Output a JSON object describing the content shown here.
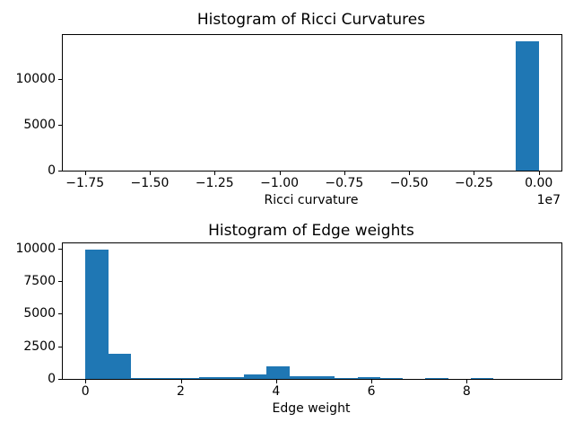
{
  "colors": {
    "bar": "#1f77b4",
    "spine": "#000000",
    "text": "#000000",
    "background": "#ffffff"
  },
  "chart_data": [
    {
      "id": "ricci-curvature-histogram",
      "type": "bar",
      "title": "Histogram of Ricci Curvatures",
      "xlabel": "Ricci curvature",
      "x_offset_label": "1e7",
      "x_unit_multiplier": 10000000,
      "grid": false,
      "legend": null,
      "bin_edges": [
        -1.748,
        -1.6606,
        -1.5732,
        -1.4858,
        -1.3984,
        -1.311,
        -1.2236,
        -1.1362,
        -1.0488,
        -0.9614,
        -0.874,
        -0.7866,
        -0.6992,
        -0.6118,
        -0.5244,
        -0.437,
        -0.3496,
        -0.2622,
        -0.1748,
        -0.0874,
        0.0
      ],
      "counts": [
        2,
        0,
        0,
        0,
        0,
        0,
        0,
        0,
        0,
        0,
        0,
        0,
        0,
        0,
        0,
        0,
        0,
        0,
        0,
        14150
      ],
      "xlim": [
        -1.8354,
        0.0874
      ],
      "ylim": [
        0,
        14850
      ],
      "xticks": [
        -1.75,
        -1.5,
        -1.25,
        -1.0,
        -0.75,
        -0.5,
        -0.25,
        0.0
      ],
      "xtick_labels": [
        "−1.75",
        "−1.50",
        "−1.25",
        "−1.00",
        "−0.75",
        "−0.50",
        "−0.25",
        "0.00"
      ],
      "yticks": [
        0,
        5000,
        10000
      ],
      "ytick_labels": [
        "0",
        "5000",
        "10000"
      ]
    },
    {
      "id": "edge-weight-histogram",
      "type": "bar",
      "title": "Histogram of Edge weights",
      "xlabel": "Edge weight",
      "x_offset_label": "",
      "x_unit_multiplier": 1,
      "grid": false,
      "legend": null,
      "bin_edges": [
        0.0,
        0.4757,
        0.9514,
        1.4271,
        1.9028,
        2.3785,
        2.8542,
        3.3299,
        3.8056,
        4.2813,
        4.757,
        5.2327,
        5.7084,
        6.1841,
        6.6598,
        7.1355,
        7.6112,
        8.0869,
        8.5626,
        9.0383,
        9.514
      ],
      "counts": [
        9900,
        1950,
        40,
        40,
        40,
        150,
        150,
        350,
        950,
        210,
        210,
        40,
        120,
        60,
        0,
        60,
        0,
        60,
        0,
        2
      ],
      "xlim": [
        -0.4757,
        9.9897
      ],
      "ylim": [
        0,
        10410
      ],
      "xticks": [
        0,
        2,
        4,
        6,
        8
      ],
      "xtick_labels": [
        "0",
        "2",
        "4",
        "6",
        "8"
      ],
      "yticks": [
        0,
        2500,
        5000,
        7500,
        10000
      ],
      "ytick_labels": [
        "0",
        "2500",
        "5000",
        "7500",
        "10000"
      ]
    }
  ]
}
